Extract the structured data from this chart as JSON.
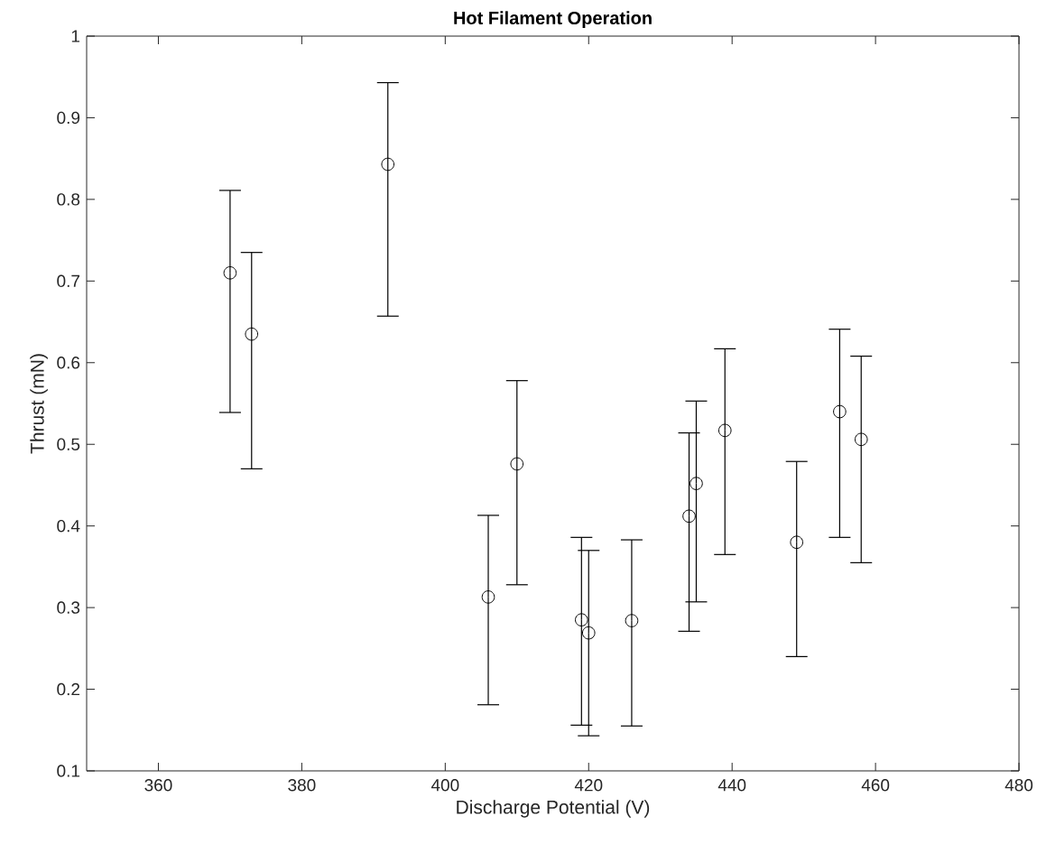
{
  "chart_data": {
    "type": "scatter",
    "title": "Hot Filament Operation",
    "xlabel": "Discharge Potential (V)",
    "ylabel": "Thrust (mN)",
    "x": [
      370,
      373,
      392,
      406,
      410,
      419,
      420,
      426,
      434,
      435,
      439,
      449,
      455,
      458
    ],
    "series": [
      {
        "color": "#000000",
        "values": [
          0.71,
          0.635,
          0.843,
          0.313,
          0.476,
          0.285,
          0.269,
          0.284,
          0.412,
          0.452,
          0.517,
          0.38,
          0.54,
          0.506
        ],
        "errors": [
          [
            0.539,
            0.811
          ],
          [
            0.47,
            0.735
          ],
          [
            0.657,
            0.943
          ],
          [
            0.181,
            0.413
          ],
          [
            0.328,
            0.578
          ],
          [
            0.156,
            0.386
          ],
          [
            0.143,
            0.37
          ],
          [
            0.155,
            0.383
          ],
          [
            0.271,
            0.514
          ],
          [
            0.307,
            0.553
          ],
          [
            0.365,
            0.617
          ],
          [
            0.24,
            0.479
          ],
          [
            0.386,
            0.641
          ],
          [
            0.355,
            0.608
          ]
        ]
      }
    ],
    "marker": "circle",
    "xlim": [
      350,
      480
    ],
    "ylim": [
      0.1,
      1
    ],
    "xticks": [
      360,
      380,
      400,
      420,
      440,
      460,
      480
    ],
    "yticks": [
      0.1,
      0.2,
      0.3,
      0.4,
      0.5,
      0.6,
      0.7,
      0.8,
      0.9,
      1
    ],
    "grid": false
  }
}
